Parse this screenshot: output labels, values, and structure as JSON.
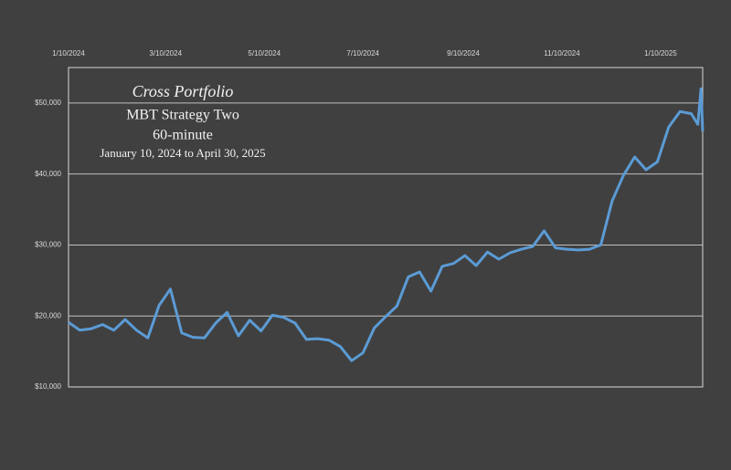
{
  "chart_data": {
    "type": "line",
    "title": "Cross Portfolio",
    "subtitle": "MBT Strategy Two",
    "timeframe": "60-minute",
    "date_range": "January 10,  2024 to April 30, 2025",
    "x": [
      "1/10/2024",
      "1/17/2024",
      "1/24/2024",
      "1/31/2024",
      "2/7/2024",
      "2/14/2024",
      "2/21/2024",
      "2/28/2024",
      "3/6/2024",
      "3/13/2024",
      "3/20/2024",
      "3/27/2024",
      "4/3/2024",
      "4/10/2024",
      "4/17/2024",
      "4/24/2024",
      "5/1/2024",
      "5/8/2024",
      "5/15/2024",
      "5/22/2024",
      "5/29/2024",
      "6/5/2024",
      "6/12/2024",
      "6/19/2024",
      "6/26/2024",
      "7/3/2024",
      "7/10/2024",
      "7/17/2024",
      "7/24/2024",
      "7/31/2024",
      "8/7/2024",
      "8/14/2024",
      "8/21/2024",
      "8/28/2024",
      "9/4/2024",
      "9/11/2024",
      "9/18/2024",
      "9/25/2024",
      "10/2/2024",
      "10/9/2024",
      "10/16/2024",
      "10/23/2024",
      "10/30/2024",
      "11/6/2024",
      "11/13/2024",
      "11/20/2024",
      "11/27/2024",
      "12/4/2024",
      "12/11/2024",
      "12/18/2024",
      "12/25/2024",
      "1/1/2025",
      "1/8/2025",
      "1/15/2025",
      "1/22/2025",
      "1/29/2025",
      "2/2/2025",
      "2/4/2025",
      "2/5/2025"
    ],
    "series": [
      {
        "name": "Cross Portfolio",
        "color": "#5b9bd5",
        "values": [
          19100,
          18000,
          18200,
          18800,
          18000,
          19500,
          18000,
          16900,
          21500,
          23800,
          17600,
          17000,
          16900,
          19000,
          20500,
          17200,
          19400,
          17900,
          20100,
          19800,
          19000,
          16700,
          16800,
          16600,
          15700,
          13700,
          14800,
          18300,
          19900,
          21400,
          25500,
          26200,
          23500,
          27000,
          27400,
          28500,
          27100,
          29000,
          28000,
          28900,
          29400,
          29800,
          32000,
          29600,
          29400,
          29300,
          29400,
          30000,
          36200,
          39800,
          42400,
          40600,
          41700,
          46600,
          48800,
          48500,
          47000,
          52000,
          46000
        ]
      }
    ],
    "xlim": [
      "1/10/2024",
      "2/5/2025"
    ],
    "xticks": [
      "1/10/2024",
      "3/10/2024",
      "5/10/2024",
      "7/10/2024",
      "9/10/2024",
      "11/10/2024",
      "1/10/2025"
    ],
    "ylim": [
      10000,
      55000
    ],
    "yticks": [
      {
        "value": 10000,
        "label": "$10,000"
      },
      {
        "value": 20000,
        "label": "$20,000"
      },
      {
        "value": 30000,
        "label": "$30,000"
      },
      {
        "value": 40000,
        "label": "$40,000"
      },
      {
        "value": 50000,
        "label": "$50,000"
      }
    ],
    "grid": true
  }
}
